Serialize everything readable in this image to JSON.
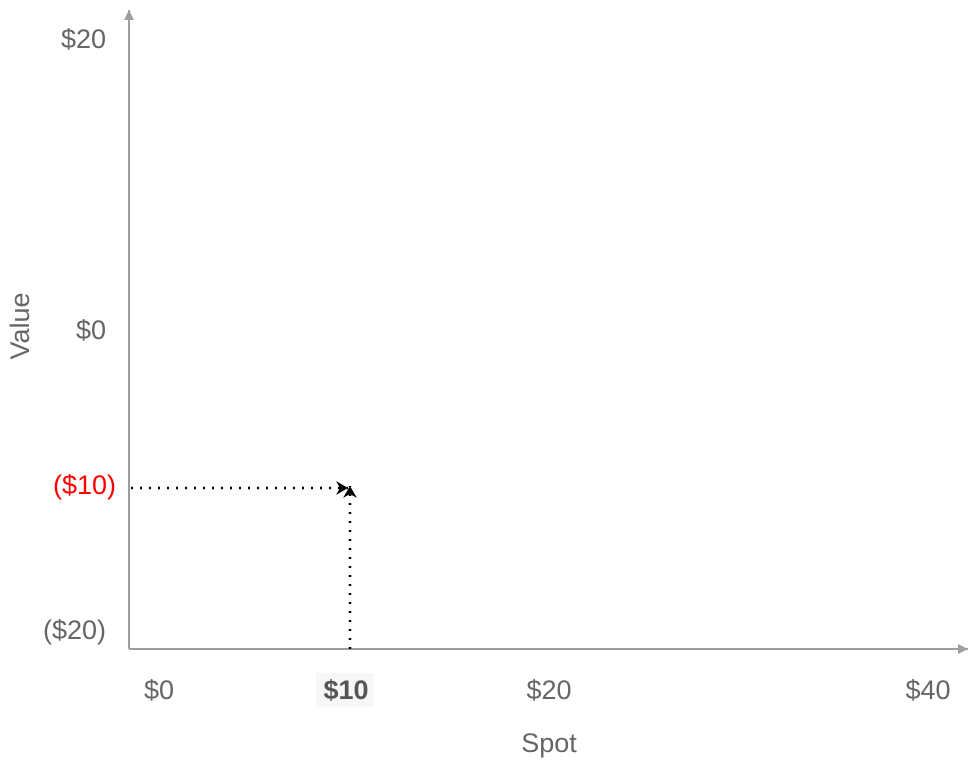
{
  "diagram": {
    "y_axis_label": "Value",
    "x_axis_label": "Spot",
    "y_ticks": [
      "$20",
      "$0",
      "($10)",
      "($20)"
    ],
    "x_ticks": [
      "$0",
      "$10",
      "$20",
      "$40"
    ],
    "highlight_y_label": "($10)",
    "highlight_x_label": "$10",
    "colors": {
      "axis": "#9e9e9e",
      "text": "#666666",
      "highlight_y": "#ff0000",
      "dotted": "#000000",
      "highlight_x_bg": "#f7f7f7"
    }
  }
}
